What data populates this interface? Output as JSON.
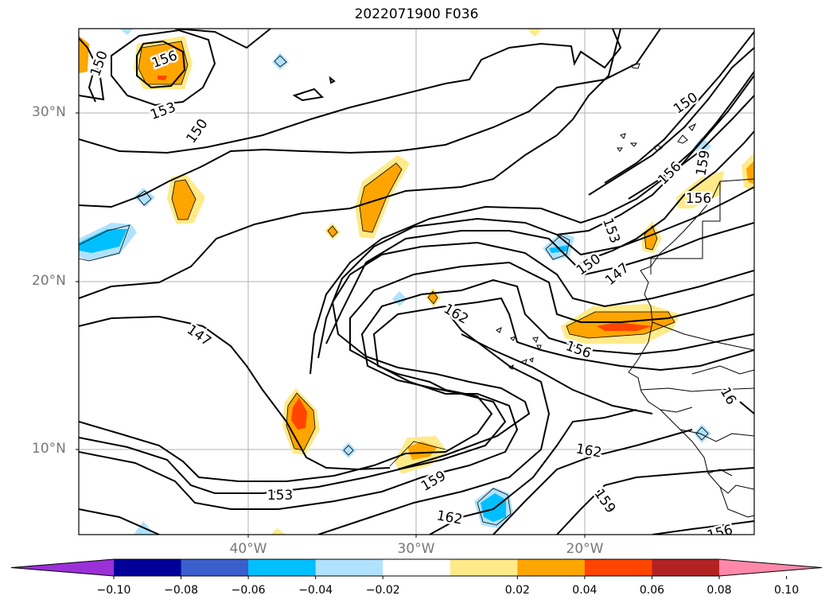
{
  "title": "2022071900 F036",
  "lat_labels": [
    "30°N",
    "20°N",
    "10°N"
  ],
  "lon_labels": [
    "40°W",
    "30°W",
    "20°W"
  ],
  "contour_labels": [
    "156",
    "150",
    "153",
    "150",
    "147",
    "162",
    "156",
    "162",
    "159",
    "153",
    "162",
    "159",
    "156",
    "150",
    "147",
    "153",
    "156",
    "159",
    "150",
    "156",
    "16"
  ],
  "colorbar": {
    "ticks": [
      "−0.10",
      "−0.08",
      "−0.06",
      "−0.04",
      "−0.02",
      "0.02",
      "0.04",
      "0.06",
      "0.08",
      "0.10"
    ],
    "colors": [
      "#9b30d9",
      "#000099",
      "#3a5fcd",
      "#00bfff",
      "#b0e2ff",
      "#ffffff",
      "#ffea8a",
      "#ffa500",
      "#ff4500",
      "#b22222",
      "#ff88aa"
    ]
  },
  "fill_colors": {
    "light_yellow": "#ffea8a",
    "orange": "#ffa500",
    "red_orange": "#ff4500",
    "light_blue": "#b0e2ff",
    "blue": "#00bfff"
  }
}
